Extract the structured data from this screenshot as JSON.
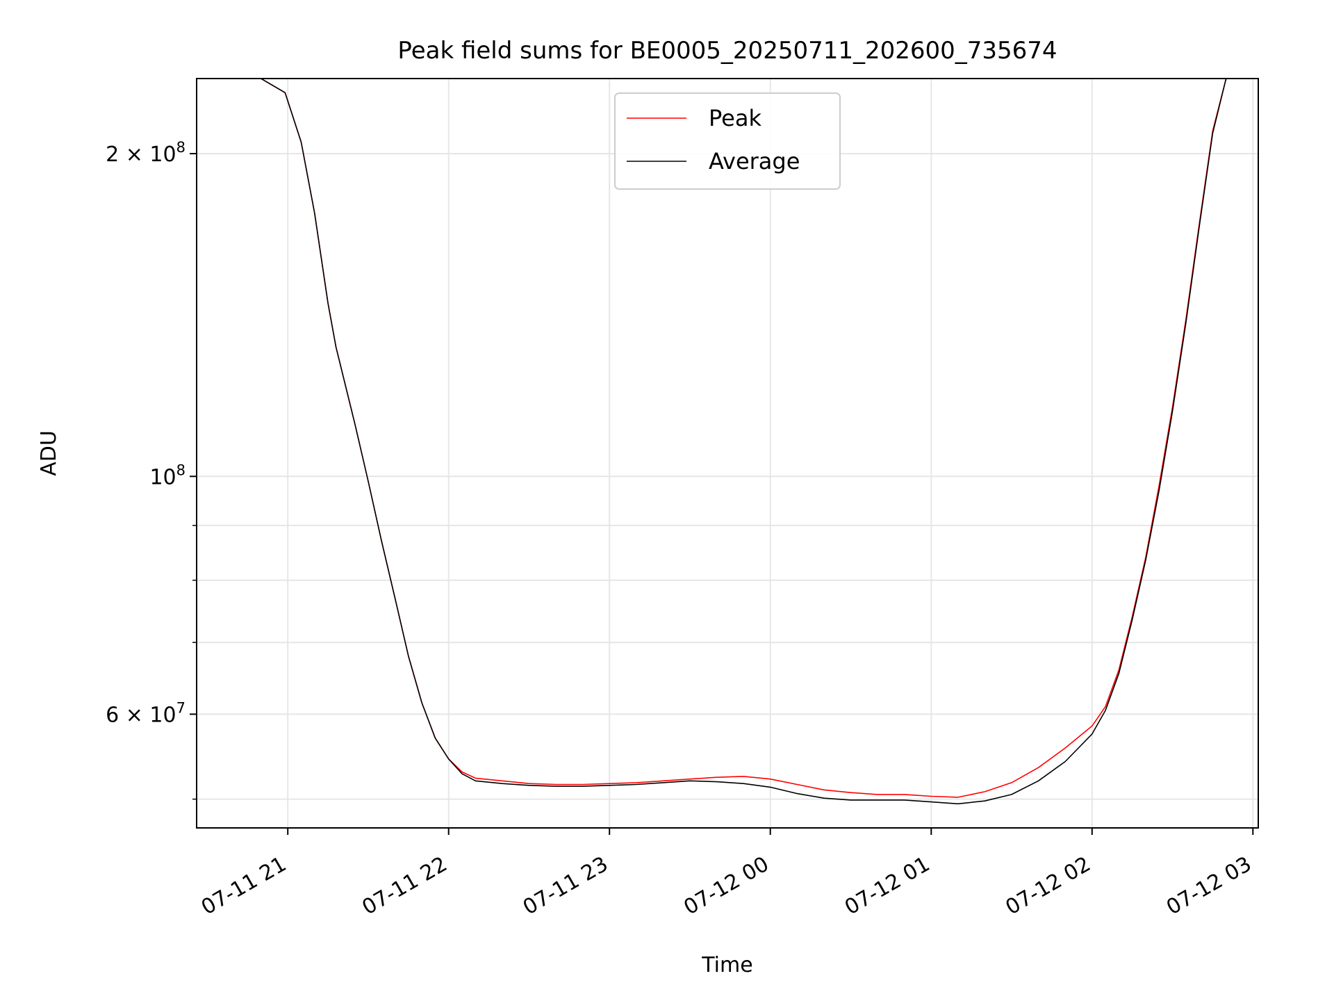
{
  "chart_data": {
    "type": "line",
    "title": "Peak field sums for BE0005_20250711_202600_735674",
    "xlabel": "Time",
    "ylabel": "ADU",
    "y_scale": "log",
    "grid": true,
    "legend_position": "upper center",
    "x_range": [
      "2025-07-11 20:26",
      "2025-07-12 03:02"
    ],
    "ylim": [
      47000000,
      235000000
    ],
    "x_ticks": [
      {
        "t": "2025-07-11 21:00",
        "label": "07-11 21"
      },
      {
        "t": "2025-07-11 22:00",
        "label": "07-11 22"
      },
      {
        "t": "2025-07-11 23:00",
        "label": "07-11 23"
      },
      {
        "t": "2025-07-12 00:00",
        "label": "07-12 00"
      },
      {
        "t": "2025-07-12 01:00",
        "label": "07-12 01"
      },
      {
        "t": "2025-07-12 02:00",
        "label": "07-12 02"
      },
      {
        "t": "2025-07-12 03:00",
        "label": "07-12 03"
      }
    ],
    "y_major_ticks": [
      {
        "value": 200000000,
        "mant": "2",
        "exp": "8"
      },
      {
        "value": 100000000,
        "mant": "",
        "exp": "8"
      },
      {
        "value": 60000000,
        "mant": "6",
        "exp": "7"
      }
    ],
    "y_minor_grid": [
      50000000,
      70000000,
      80000000,
      90000000
    ],
    "series": [
      {
        "name": "Peak",
        "color": "#ff0000",
        "points": [
          [
            "2025-07-11 20:50",
            235000000
          ],
          [
            "2025-07-11 20:59",
            228000000
          ],
          [
            "2025-07-11 21:05",
            205000000
          ],
          [
            "2025-07-11 21:10",
            176000000
          ],
          [
            "2025-07-11 21:15",
            145000000
          ],
          [
            "2025-07-11 21:18",
            132000000
          ],
          [
            "2025-07-11 21:25",
            112000000
          ],
          [
            "2025-07-11 21:30",
            99000000
          ],
          [
            "2025-07-11 21:35",
            87000000
          ],
          [
            "2025-07-11 21:40",
            77000000
          ],
          [
            "2025-07-11 21:45",
            68000000
          ],
          [
            "2025-07-11 21:50",
            61500000
          ],
          [
            "2025-07-11 21:55",
            57000000
          ],
          [
            "2025-07-11 22:00",
            54500000
          ],
          [
            "2025-07-11 22:05",
            53000000
          ],
          [
            "2025-07-11 22:10",
            52300000
          ],
          [
            "2025-07-11 22:20",
            52000000
          ],
          [
            "2025-07-11 22:30",
            51700000
          ],
          [
            "2025-07-11 22:40",
            51600000
          ],
          [
            "2025-07-11 22:50",
            51600000
          ],
          [
            "2025-07-11 23:00",
            51700000
          ],
          [
            "2025-07-11 23:10",
            51800000
          ],
          [
            "2025-07-11 23:20",
            52000000
          ],
          [
            "2025-07-11 23:30",
            52200000
          ],
          [
            "2025-07-11 23:40",
            52400000
          ],
          [
            "2025-07-11 23:50",
            52500000
          ],
          [
            "2025-07-12 00:00",
            52200000
          ],
          [
            "2025-07-12 00:10",
            51600000
          ],
          [
            "2025-07-12 00:20",
            51000000
          ],
          [
            "2025-07-12 00:30",
            50700000
          ],
          [
            "2025-07-12 00:40",
            50500000
          ],
          [
            "2025-07-12 00:50",
            50500000
          ],
          [
            "2025-07-12 01:00",
            50300000
          ],
          [
            "2025-07-12 01:10",
            50200000
          ],
          [
            "2025-07-12 01:20",
            50800000
          ],
          [
            "2025-07-12 01:30",
            51800000
          ],
          [
            "2025-07-12 01:40",
            53500000
          ],
          [
            "2025-07-12 01:50",
            55800000
          ],
          [
            "2025-07-12 02:00",
            58500000
          ],
          [
            "2025-07-12 02:05",
            61000000
          ],
          [
            "2025-07-12 02:10",
            66000000
          ],
          [
            "2025-07-12 02:15",
            74000000
          ],
          [
            "2025-07-12 02:20",
            84000000
          ],
          [
            "2025-07-12 02:25",
            98000000
          ],
          [
            "2025-07-12 02:30",
            116000000
          ],
          [
            "2025-07-12 02:35",
            140000000
          ],
          [
            "2025-07-12 02:40",
            172000000
          ],
          [
            "2025-07-12 02:45",
            210000000
          ],
          [
            "2025-07-12 02:50",
            235000000
          ]
        ]
      },
      {
        "name": "Average",
        "color": "#000000",
        "points": [
          [
            "2025-07-11 20:50",
            235000000
          ],
          [
            "2025-07-11 20:59",
            228000000
          ],
          [
            "2025-07-11 21:05",
            205000000
          ],
          [
            "2025-07-11 21:10",
            176000000
          ],
          [
            "2025-07-11 21:15",
            145000000
          ],
          [
            "2025-07-11 21:18",
            132000000
          ],
          [
            "2025-07-11 21:25",
            112000000
          ],
          [
            "2025-07-11 21:30",
            99000000
          ],
          [
            "2025-07-11 21:35",
            87000000
          ],
          [
            "2025-07-11 21:40",
            77000000
          ],
          [
            "2025-07-11 21:45",
            68000000
          ],
          [
            "2025-07-11 21:50",
            61500000
          ],
          [
            "2025-07-11 21:55",
            57000000
          ],
          [
            "2025-07-11 22:00",
            54500000
          ],
          [
            "2025-07-11 22:05",
            52800000
          ],
          [
            "2025-07-11 22:10",
            52000000
          ],
          [
            "2025-07-11 22:20",
            51700000
          ],
          [
            "2025-07-11 22:30",
            51500000
          ],
          [
            "2025-07-11 22:40",
            51400000
          ],
          [
            "2025-07-11 22:50",
            51400000
          ],
          [
            "2025-07-11 23:00",
            51500000
          ],
          [
            "2025-07-11 23:10",
            51600000
          ],
          [
            "2025-07-11 23:20",
            51800000
          ],
          [
            "2025-07-11 23:30",
            52000000
          ],
          [
            "2025-07-11 23:40",
            51900000
          ],
          [
            "2025-07-11 23:50",
            51700000
          ],
          [
            "2025-07-12 00:00",
            51300000
          ],
          [
            "2025-07-12 00:10",
            50600000
          ],
          [
            "2025-07-12 00:20",
            50100000
          ],
          [
            "2025-07-12 00:30",
            49900000
          ],
          [
            "2025-07-12 00:40",
            49900000
          ],
          [
            "2025-07-12 00:50",
            49900000
          ],
          [
            "2025-07-12 01:00",
            49700000
          ],
          [
            "2025-07-12 01:10",
            49500000
          ],
          [
            "2025-07-12 01:20",
            49800000
          ],
          [
            "2025-07-12 01:30",
            50500000
          ],
          [
            "2025-07-12 01:40",
            52000000
          ],
          [
            "2025-07-12 01:50",
            54200000
          ],
          [
            "2025-07-12 02:00",
            57500000
          ],
          [
            "2025-07-12 02:05",
            60500000
          ],
          [
            "2025-07-12 02:10",
            65500000
          ],
          [
            "2025-07-12 02:15",
            73500000
          ],
          [
            "2025-07-12 02:20",
            83500000
          ],
          [
            "2025-07-12 02:25",
            97000000
          ],
          [
            "2025-07-12 02:30",
            115000000
          ],
          [
            "2025-07-12 02:35",
            139000000
          ],
          [
            "2025-07-12 02:40",
            171000000
          ],
          [
            "2025-07-12 02:45",
            209000000
          ],
          [
            "2025-07-12 02:50",
            235000000
          ]
        ]
      }
    ]
  }
}
